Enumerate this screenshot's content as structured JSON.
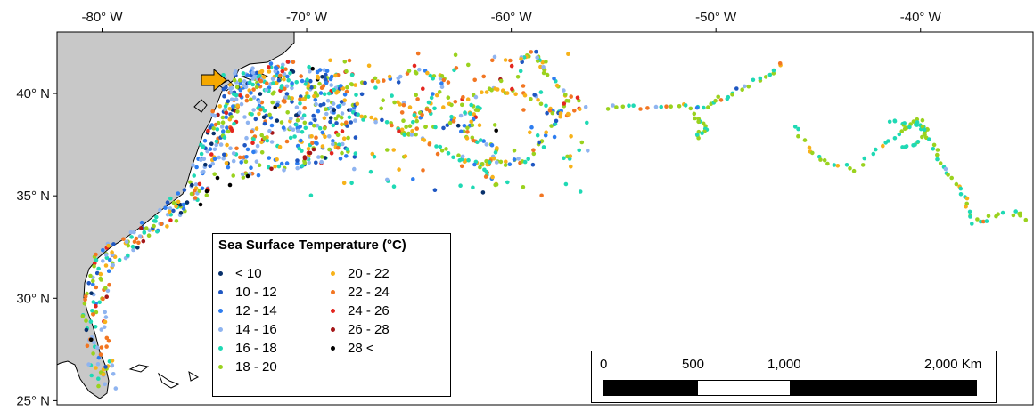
{
  "map": {
    "lon_ticks": [
      "-80° W",
      "-70° W",
      "-60° W",
      "-50° W",
      "-40° W"
    ],
    "lat_ticks": [
      "40° N",
      "35° N",
      "30° N",
      "25° N"
    ],
    "lon_tick_values": [
      -80,
      -70,
      -60,
      -50,
      -40
    ],
    "lat_tick_values": [
      40,
      35,
      30,
      25
    ],
    "extent": {
      "lon_min": -82.2,
      "lon_max": -34.5,
      "lat_min": 24.8,
      "lat_max": 43.0
    },
    "land_color": "#c8c8c8",
    "coast_color": "#000000",
    "marker_icon": "arrow-icon",
    "marker_color": "#f5a800"
  },
  "legend": {
    "title": "Sea Surface Temperature (°C)",
    "column1": [
      {
        "label": "< 10",
        "color": "#08306b"
      },
      {
        "label": "10 - 12",
        "color": "#1f57c2"
      },
      {
        "label": "12 - 14",
        "color": "#2d7df0"
      },
      {
        "label": "14 - 16",
        "color": "#8fb4f0"
      },
      {
        "label": "16 - 18",
        "color": "#1fd9b4"
      },
      {
        "label": "18 - 20",
        "color": "#9ad21e"
      }
    ],
    "column2": [
      {
        "label": "20 - 22",
        "color": "#f7b21a"
      },
      {
        "label": "22 - 24",
        "color": "#f27622"
      },
      {
        "label": "24 - 26",
        "color": "#e4261f"
      },
      {
        "label": "26 - 28",
        "color": "#a51618"
      },
      {
        "label": "28 <",
        "color": "#000000"
      }
    ]
  },
  "scale_bar": {
    "labels": [
      "0",
      "500",
      "1,000",
      "2,000 Km"
    ]
  }
}
